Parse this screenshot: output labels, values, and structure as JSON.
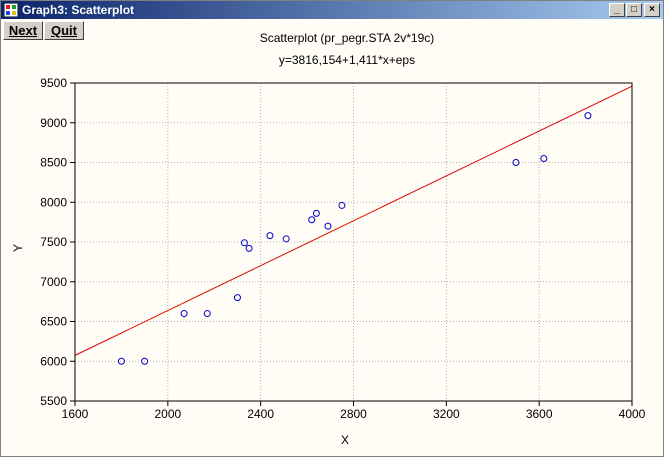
{
  "window": {
    "title": "Graph3: Scatterplot",
    "minimize_label": "_",
    "maximize_label": "□",
    "close_label": "×"
  },
  "toolbar": {
    "next_label": "Next",
    "quit_label": "Quit"
  },
  "colors": {
    "points": "#0000cc",
    "fit_line": "#dd0000",
    "grid": "#b0b0b0",
    "background": "#fffdf5"
  },
  "chart_data": {
    "type": "scatter",
    "title": "Scatterplot (pr_pegr.STA 2v*19c)",
    "subtitle": "y=3816,154+1,411*x+eps",
    "xlabel": "X",
    "ylabel": "Y",
    "xlim": [
      1600,
      4000
    ],
    "ylim": [
      5500,
      9500
    ],
    "xticks": [
      1600,
      2000,
      2400,
      2800,
      3200,
      3600,
      4000
    ],
    "yticks": [
      5500,
      6000,
      6500,
      7000,
      7500,
      8000,
      8500,
      9000,
      9500
    ],
    "grid": true,
    "regression": {
      "intercept": 3816.154,
      "slope": 1.411
    },
    "points": [
      {
        "x": 1800,
        "y": 6000
      },
      {
        "x": 1900,
        "y": 6000
      },
      {
        "x": 2070,
        "y": 6600
      },
      {
        "x": 2170,
        "y": 6600
      },
      {
        "x": 2300,
        "y": 6800
      },
      {
        "x": 2330,
        "y": 7490
      },
      {
        "x": 2350,
        "y": 7420
      },
      {
        "x": 2440,
        "y": 7580
      },
      {
        "x": 2510,
        "y": 7540
      },
      {
        "x": 2620,
        "y": 7780
      },
      {
        "x": 2640,
        "y": 7860
      },
      {
        "x": 2690,
        "y": 7700
      },
      {
        "x": 2750,
        "y": 7960
      },
      {
        "x": 3500,
        "y": 8500
      },
      {
        "x": 3620,
        "y": 8550
      },
      {
        "x": 3810,
        "y": 9090
      }
    ]
  }
}
